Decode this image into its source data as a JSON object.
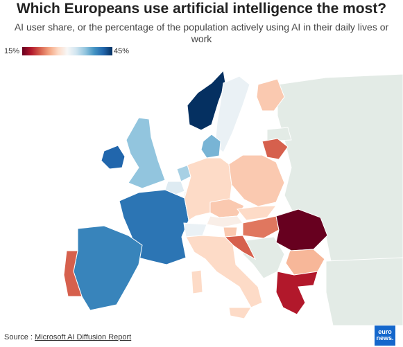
{
  "header": {
    "title": "Which Europeans use artificial intelligence the most?",
    "subtitle": "AI user share, or the percentage of the population actively using AI in their daily lives or work"
  },
  "legend": {
    "min_label": "15%",
    "max_label": "45%"
  },
  "colors": {
    "no_data": "#e3ebe6",
    "background": "#ffffff",
    "border": "#ffffff"
  },
  "map_data": {
    "type": "choropleth",
    "metric": "AI user share",
    "scale": {
      "min": 15,
      "max": 45,
      "palette": "red-to-blue diverging"
    },
    "regions": [
      {
        "name": "Norway",
        "value": 45
      },
      {
        "name": "Ireland",
        "value": 42
      },
      {
        "name": "Denmark",
        "value": 37
      },
      {
        "name": "France",
        "value": 41
      },
      {
        "name": "Spain",
        "value": 40
      },
      {
        "name": "United Kingdom",
        "value": 36
      },
      {
        "name": "Netherlands",
        "value": 35
      },
      {
        "name": "Belgium",
        "value": 32
      },
      {
        "name": "Switzerland",
        "value": 31
      },
      {
        "name": "Sweden",
        "value": 31
      },
      {
        "name": "Luxembourg",
        "value": 30
      },
      {
        "name": "Austria",
        "value": 29
      },
      {
        "name": "Finland",
        "value": 26
      },
      {
        "name": "Germany",
        "value": 27
      },
      {
        "name": "Poland",
        "value": 26
      },
      {
        "name": "Czechia",
        "value": 26
      },
      {
        "name": "Slovakia",
        "value": 27
      },
      {
        "name": "Italy",
        "value": 27
      },
      {
        "name": "Slovenia",
        "value": 26
      },
      {
        "name": "Bulgaria",
        "value": 25
      },
      {
        "name": "Lithuania",
        "value": 21
      },
      {
        "name": "Croatia",
        "value": 21
      },
      {
        "name": "Hungary",
        "value": 22
      },
      {
        "name": "Portugal",
        "value": 21
      },
      {
        "name": "Greece",
        "value": 18
      },
      {
        "name": "Romania",
        "value": 15
      }
    ]
  },
  "source": {
    "prefix": "Source : ",
    "link_text": "Microsoft AI Diffusion Report"
  },
  "logo": {
    "line1": "euro",
    "line2": "news."
  }
}
